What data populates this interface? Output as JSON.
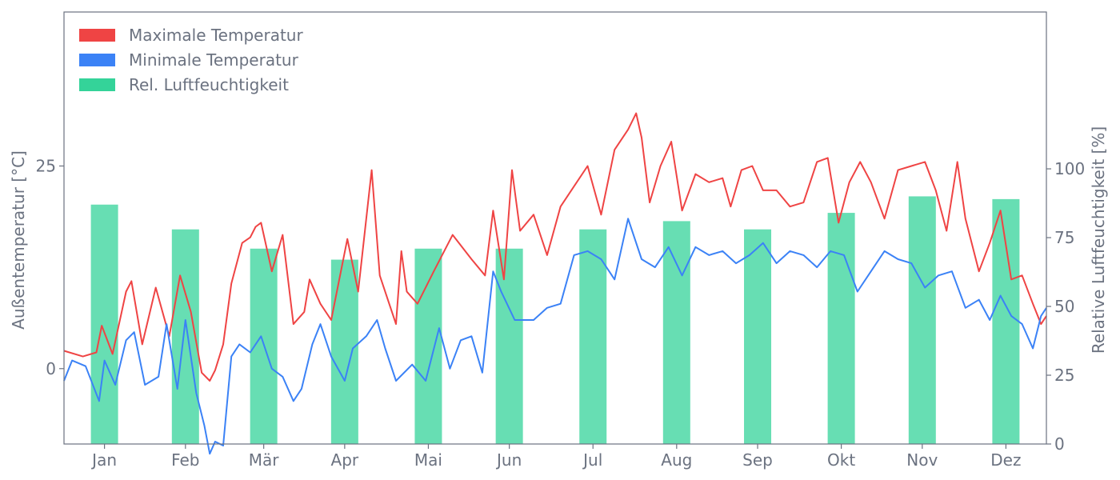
{
  "chart_data": {
    "type": "line+bar",
    "title": "",
    "x_categories": [
      "Jan",
      "Feb",
      "Mär",
      "Apr",
      "Mai",
      "Jun",
      "Jul",
      "Aug",
      "Sep",
      "Okt",
      "Nov",
      "Dez"
    ],
    "y_left": {
      "label": "Außentemperatur [°C]",
      "range": [
        -9.3,
        44
      ],
      "ticks": [
        0,
        25
      ]
    },
    "y_right": {
      "label": "Relative Luftfeuchtigkeit [%]",
      "range": [
        0,
        157
      ],
      "ticks": [
        0,
        25,
        50,
        75,
        100
      ]
    },
    "legend": {
      "position": "top-left",
      "items": [
        {
          "label": "Maximale Temperatur",
          "color": "#ef4444"
        },
        {
          "label": "Minimale Temperatur",
          "color": "#3b82f6"
        },
        {
          "label": "Rel. Luftfeuchtigkeit",
          "color": "#34d399"
        }
      ]
    },
    "series": [
      {
        "name": "Maximale Temperatur",
        "axis": "left",
        "kind": "line",
        "color": "#ef4444",
        "x_unit": "day-of-year",
        "points": [
          [
            1,
            2.2
          ],
          [
            8,
            1.5
          ],
          [
            13,
            2.0
          ],
          [
            15,
            5.3
          ],
          [
            19,
            1.8
          ],
          [
            24,
            9.5
          ],
          [
            26,
            10.8
          ],
          [
            30,
            3.0
          ],
          [
            35,
            10.0
          ],
          [
            40,
            4.0
          ],
          [
            44,
            11.5
          ],
          [
            48,
            7.0
          ],
          [
            52,
            -0.5
          ],
          [
            55,
            -1.5
          ],
          [
            57,
            -0.2
          ],
          [
            60,
            3.0
          ],
          [
            63,
            10.5
          ],
          [
            67,
            15.5
          ],
          [
            70,
            16.2
          ],
          [
            72,
            17.5
          ],
          [
            74,
            18.0
          ],
          [
            78,
            12.0
          ],
          [
            82,
            16.5
          ],
          [
            86,
            5.5
          ],
          [
            90,
            7.0
          ],
          [
            92,
            11.0
          ],
          [
            96,
            8.0
          ],
          [
            100,
            6.0
          ],
          [
            106,
            16.0
          ],
          [
            110,
            9.5
          ],
          [
            114,
            21.5
          ],
          [
            115,
            24.5
          ],
          [
            118,
            11.5
          ],
          [
            124,
            5.5
          ],
          [
            126,
            14.5
          ],
          [
            128,
            9.5
          ],
          [
            132,
            8.0
          ],
          [
            138,
            12.0
          ],
          [
            145,
            16.5
          ],
          [
            152,
            13.5
          ],
          [
            157,
            11.5
          ],
          [
            160,
            19.5
          ],
          [
            164,
            11.0
          ],
          [
            167,
            24.5
          ],
          [
            170,
            17.0
          ],
          [
            175,
            19.0
          ],
          [
            180,
            14.0
          ],
          [
            185,
            20.0
          ],
          [
            190,
            22.5
          ],
          [
            195,
            25.0
          ],
          [
            200,
            19.0
          ],
          [
            205,
            27.0
          ],
          [
            210,
            29.5
          ],
          [
            213,
            31.5
          ],
          [
            215,
            28.5
          ],
          [
            218,
            20.5
          ],
          [
            222,
            25.0
          ],
          [
            226,
            28.0
          ],
          [
            230,
            19.5
          ],
          [
            235,
            24.0
          ],
          [
            240,
            23.0
          ],
          [
            245,
            23.5
          ],
          [
            248,
            20.0
          ],
          [
            252,
            24.5
          ],
          [
            256,
            25.0
          ],
          [
            260,
            22.0
          ],
          [
            265,
            22.0
          ],
          [
            270,
            20.0
          ],
          [
            275,
            20.5
          ],
          [
            280,
            25.5
          ],
          [
            284,
            26.0
          ],
          [
            288,
            18.0
          ],
          [
            292,
            23.0
          ],
          [
            296,
            25.5
          ],
          [
            300,
            23.0
          ],
          [
            305,
            18.5
          ],
          [
            310,
            24.5
          ],
          [
            315,
            25.0
          ],
          [
            320,
            25.5
          ],
          [
            324,
            22.0
          ],
          [
            328,
            17.0
          ],
          [
            332,
            25.5
          ],
          [
            335,
            18.5
          ],
          [
            340,
            12.0
          ],
          [
            344,
            15.5
          ],
          [
            348,
            19.5
          ],
          [
            352,
            11.0
          ],
          [
            356,
            11.5
          ],
          [
            360,
            8.0
          ],
          [
            363,
            5.5
          ],
          [
            365,
            6.5
          ]
        ]
      },
      {
        "name": "Minimale Temperatur",
        "axis": "left",
        "kind": "line",
        "color": "#3b82f6",
        "x_unit": "day-of-year",
        "points": [
          [
            1,
            -1.5
          ],
          [
            4,
            1.0
          ],
          [
            9,
            0.3
          ],
          [
            14,
            -4.0
          ],
          [
            16,
            1.0
          ],
          [
            20,
            -2.0
          ],
          [
            24,
            3.5
          ],
          [
            27,
            4.5
          ],
          [
            31,
            -2.0
          ],
          [
            36,
            -1.0
          ],
          [
            39,
            5.5
          ],
          [
            43,
            -2.5
          ],
          [
            46,
            6.0
          ],
          [
            50,
            -3.0
          ],
          [
            53,
            -7.0
          ],
          [
            55,
            -10.5
          ],
          [
            57,
            -9.0
          ],
          [
            60,
            -9.5
          ],
          [
            63,
            1.5
          ],
          [
            66,
            3.0
          ],
          [
            70,
            2.0
          ],
          [
            74,
            4.0
          ],
          [
            78,
            0.0
          ],
          [
            82,
            -1.0
          ],
          [
            86,
            -4.0
          ],
          [
            89,
            -2.5
          ],
          [
            93,
            3.0
          ],
          [
            96,
            5.5
          ],
          [
            100,
            1.5
          ],
          [
            105,
            -1.5
          ],
          [
            108,
            2.5
          ],
          [
            113,
            4.0
          ],
          [
            117,
            6.0
          ],
          [
            120,
            2.5
          ],
          [
            124,
            -1.5
          ],
          [
            130,
            0.5
          ],
          [
            135,
            -1.5
          ],
          [
            140,
            5.0
          ],
          [
            144,
            0.0
          ],
          [
            148,
            3.5
          ],
          [
            152,
            4.0
          ],
          [
            156,
            -0.5
          ],
          [
            160,
            12.0
          ],
          [
            163,
            9.5
          ],
          [
            168,
            6.0
          ],
          [
            175,
            6.0
          ],
          [
            180,
            7.5
          ],
          [
            185,
            8.0
          ],
          [
            190,
            14.0
          ],
          [
            195,
            14.5
          ],
          [
            200,
            13.5
          ],
          [
            205,
            11.0
          ],
          [
            210,
            18.5
          ],
          [
            215,
            13.5
          ],
          [
            220,
            12.5
          ],
          [
            225,
            15.0
          ],
          [
            230,
            11.5
          ],
          [
            235,
            15.0
          ],
          [
            240,
            14.0
          ],
          [
            245,
            14.5
          ],
          [
            250,
            13.0
          ],
          [
            255,
            14.0
          ],
          [
            260,
            15.5
          ],
          [
            265,
            13.0
          ],
          [
            270,
            14.5
          ],
          [
            275,
            14.0
          ],
          [
            280,
            12.5
          ],
          [
            285,
            14.5
          ],
          [
            290,
            14.0
          ],
          [
            295,
            9.5
          ],
          [
            300,
            12.0
          ],
          [
            305,
            14.5
          ],
          [
            310,
            13.5
          ],
          [
            315,
            13.0
          ],
          [
            320,
            10.0
          ],
          [
            325,
            11.5
          ],
          [
            330,
            12.0
          ],
          [
            335,
            7.5
          ],
          [
            340,
            8.5
          ],
          [
            344,
            6.0
          ],
          [
            348,
            9.0
          ],
          [
            352,
            6.5
          ],
          [
            356,
            5.5
          ],
          [
            360,
            2.5
          ],
          [
            363,
            6.5
          ],
          [
            365,
            7.5
          ]
        ]
      },
      {
        "name": "Rel. Luftfeuchtigkeit",
        "axis": "right",
        "kind": "bar",
        "color": "#34d399",
        "values": [
          87,
          78,
          71,
          67,
          71,
          71,
          78,
          81,
          78,
          84,
          90,
          89
        ]
      }
    ],
    "grid": false
  }
}
